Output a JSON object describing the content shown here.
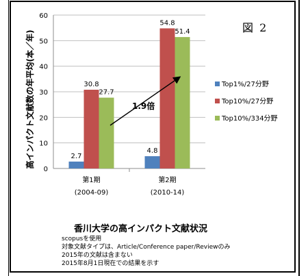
{
  "figure_label": "図 2",
  "caption": "香川大学の高インパクト文献状況",
  "notes": [
    "scopusを使用",
    "対象文献タイプは、Article/Conference paper/Reviewのみ",
    "2015年の文献は含まない",
    "2015年8月1日現在での結果を示す"
  ],
  "annotation": "1.9倍",
  "chart_data": {
    "type": "bar",
    "title": "",
    "ylabel": "高インパクト文献数の年平均(本／年)",
    "xlabel": "",
    "ylim": [
      0,
      60
    ],
    "yticks": [
      0,
      10,
      20,
      30,
      40,
      50,
      60
    ],
    "categories": [
      {
        "line1": "第1期",
        "line2": "(2004-09)"
      },
      {
        "line1": "第2期",
        "line2": "(2010-14)"
      }
    ],
    "series": [
      {
        "name": "Top1%/27分野",
        "color": "#4f81bd",
        "values": [
          2.7,
          4.8
        ]
      },
      {
        "name": "Top10%/27分野",
        "color": "#c0504d",
        "values": [
          30.8,
          54.8
        ]
      },
      {
        "name": "Top10%/334分野",
        "color": "#9bbb59",
        "values": [
          27.7,
          51.4
        ]
      }
    ],
    "grid": true,
    "legend_position": "right"
  }
}
